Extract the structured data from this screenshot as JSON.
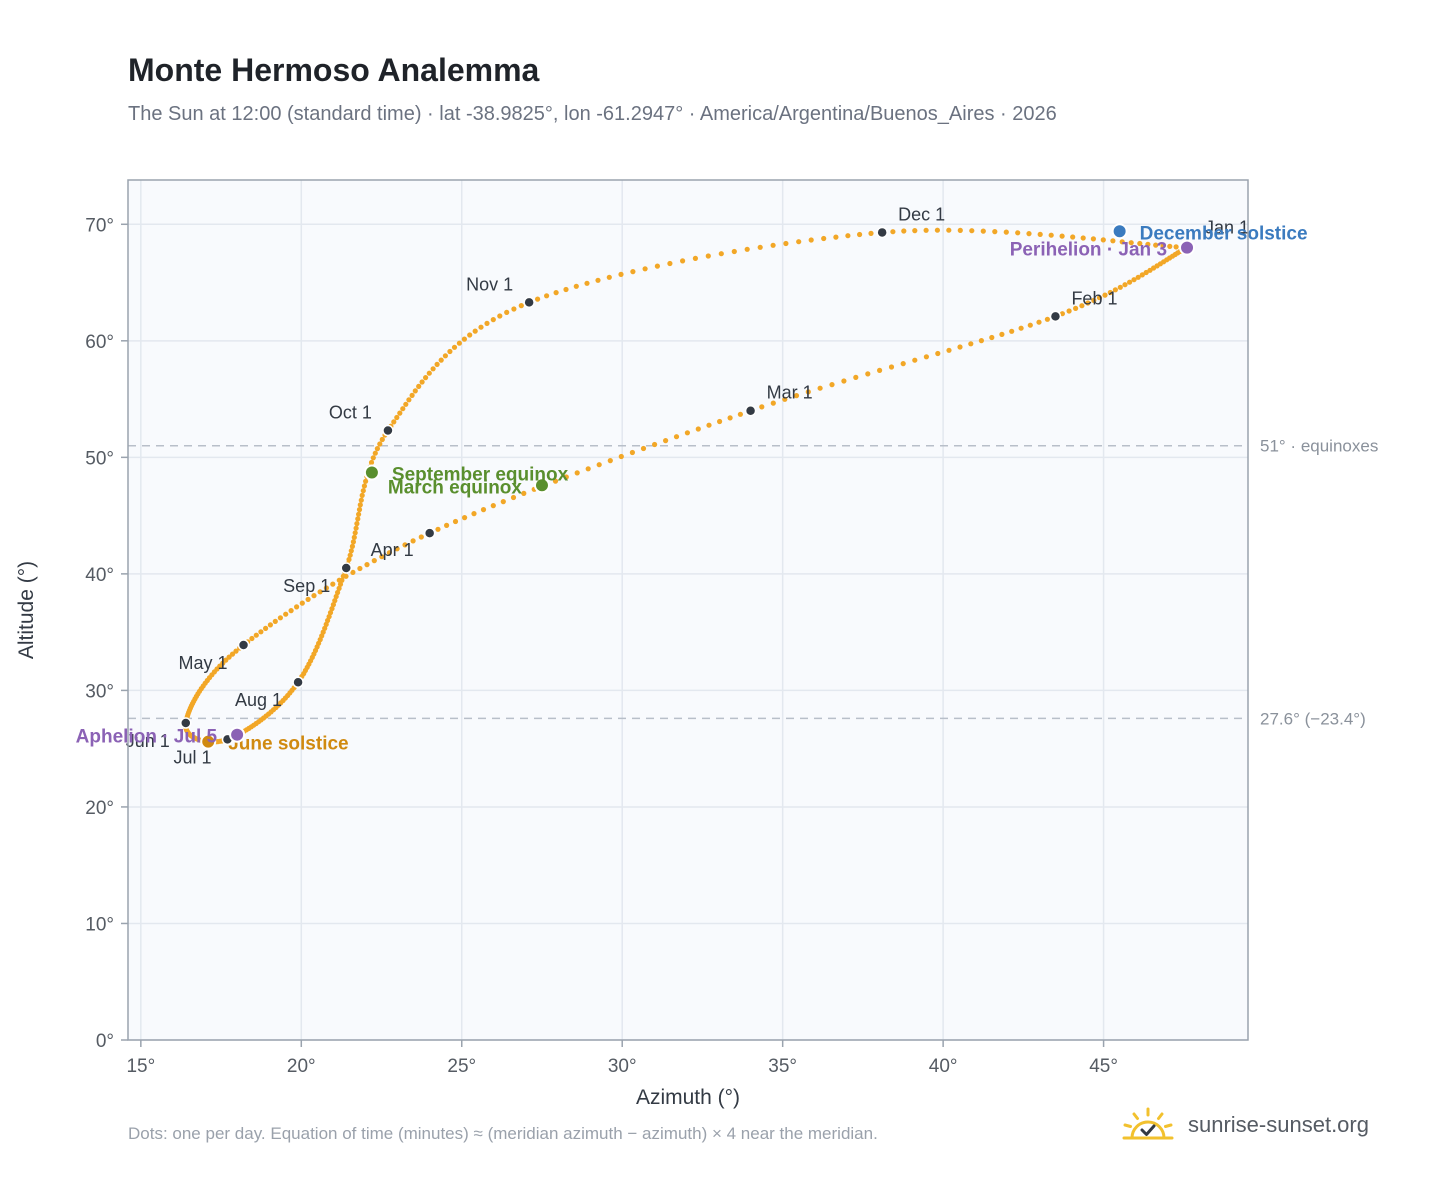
{
  "header": {
    "title": "Monte Hermoso Analemma",
    "subtitle": "The Sun at 12:00 (standard time) · lat -38.9825°, lon -61.2947° · America/Argentina/Buenos_Aires · 2026"
  },
  "footer": {
    "note": "Dots: one per day. Equation of time (minutes) ≈ (meridian azimuth − azimuth) × 4 near the meridian.",
    "brand": "sunrise-sunset.org"
  },
  "colors": {
    "curve": "#f2a727",
    "month_marker": "#333a44",
    "equinox": "#5a8f2e",
    "june_solstice": "#d08a10",
    "december_solstice": "#3b7bbf",
    "apsis": "#8b62b5",
    "plot_background": "#f8fafd",
    "grid": "#e3e8ef",
    "reference_line": "#b8bfc9"
  },
  "chart_data": {
    "type": "scatter",
    "xlabel": "Azimuth (°)",
    "ylabel": "Altitude (°)",
    "xlim": [
      14.6,
      49.5
    ],
    "ylim": [
      0,
      73.8
    ],
    "x_ticks": [
      15,
      20,
      25,
      30,
      35,
      40,
      45
    ],
    "y_ticks": [
      0,
      10,
      20,
      30,
      40,
      50,
      60,
      70
    ],
    "tick_suffix": "°",
    "grid": true,
    "series": [
      {
        "style": "daily-dots",
        "anchors": [
          {
            "label": "Jan 1",
            "x": 47.6,
            "y": 68.0
          },
          {
            "label": "Feb 1",
            "x": 43.5,
            "y": 62.1
          },
          {
            "label": "Mar 1",
            "x": 34.0,
            "y": 54.0
          },
          {
            "label": "Apr 1",
            "x": 24.0,
            "y": 43.5
          },
          {
            "label": "May 1",
            "x": 18.2,
            "y": 33.9
          },
          {
            "label": "Jun 1",
            "x": 16.4,
            "y": 27.2
          },
          {
            "label": "Jul 1",
            "x": 17.7,
            "y": 25.8
          },
          {
            "label": "Aug 1",
            "x": 19.9,
            "y": 30.7
          },
          {
            "label": "Sep 1",
            "x": 21.4,
            "y": 40.5
          },
          {
            "label": "Oct 1",
            "x": 22.7,
            "y": 52.3
          },
          {
            "label": "Nov 1",
            "x": 27.1,
            "y": 63.3
          },
          {
            "label": "Dec 1",
            "x": 38.1,
            "y": 69.3
          },
          {
            "label": "",
            "x": 47.6,
            "y": 68.0
          }
        ]
      }
    ],
    "month_labels": [
      {
        "label": "Jan 1",
        "x": 47.6,
        "y": 68.0,
        "anchor": "start",
        "dx": 18,
        "dy": -14
      },
      {
        "label": "Feb 1",
        "x": 43.5,
        "y": 62.1,
        "anchor": "start",
        "dx": 16,
        "dy": -12
      },
      {
        "label": "Mar 1",
        "x": 34.0,
        "y": 54.0,
        "anchor": "start",
        "dx": 16,
        "dy": -12
      },
      {
        "label": "Apr 1",
        "x": 24.0,
        "y": 43.5,
        "anchor": "end",
        "dx": -16,
        "dy": 23
      },
      {
        "label": "May 1",
        "x": 18.2,
        "y": 33.9,
        "anchor": "end",
        "dx": -16,
        "dy": 24
      },
      {
        "label": "Jun 1",
        "x": 16.4,
        "y": 27.2,
        "anchor": "end",
        "dx": -16,
        "dy": 24
      },
      {
        "label": "Jul 1",
        "x": 17.7,
        "y": 25.8,
        "anchor": "end",
        "dx": -16,
        "dy": 24
      },
      {
        "label": "Aug 1",
        "x": 19.9,
        "y": 30.7,
        "anchor": "end",
        "dx": -16,
        "dy": 24
      },
      {
        "label": "Sep 1",
        "x": 21.4,
        "y": 40.5,
        "anchor": "end",
        "dx": -16,
        "dy": 24
      },
      {
        "label": "Oct 1",
        "x": 22.7,
        "y": 52.3,
        "anchor": "end",
        "dx": -16,
        "dy": -12
      },
      {
        "label": "Nov 1",
        "x": 27.1,
        "y": 63.3,
        "anchor": "end",
        "dx": -16,
        "dy": -12
      },
      {
        "label": "Dec 1",
        "x": 38.1,
        "y": 69.3,
        "anchor": "start",
        "dx": 16,
        "dy": -12
      }
    ],
    "events": [
      {
        "label": "March equinox",
        "x": 27.5,
        "y": 47.6,
        "color": "#5a8f2e",
        "anchor": "end",
        "dx": -20,
        "dy": 8
      },
      {
        "label": "September equinox",
        "x": 22.2,
        "y": 48.7,
        "color": "#5a8f2e",
        "anchor": "start",
        "dx": 20,
        "dy": 8
      },
      {
        "label": "June solstice",
        "x": 17.1,
        "y": 25.6,
        "color": "#d08a10",
        "anchor": "start",
        "dx": 20,
        "dy": 8
      },
      {
        "label": "December solstice",
        "x": 45.5,
        "y": 69.4,
        "color": "#3b7bbf",
        "anchor": "start",
        "dx": 20,
        "dy": 8
      },
      {
        "label": "Perihelion · Jan 3",
        "x": 47.6,
        "y": 68.0,
        "color": "#8b62b5",
        "anchor": "end",
        "dx": -20,
        "dy": 8
      },
      {
        "label": "Aphelion · Jul 5",
        "x": 18.0,
        "y": 26.2,
        "color": "#8b62b5",
        "anchor": "end",
        "dx": -20,
        "dy": 8
      }
    ],
    "reference_lines": [
      {
        "y": 51.0,
        "label": "51° · equinoxes"
      },
      {
        "y": 27.6,
        "label": "27.6° (−23.4°)"
      }
    ]
  }
}
